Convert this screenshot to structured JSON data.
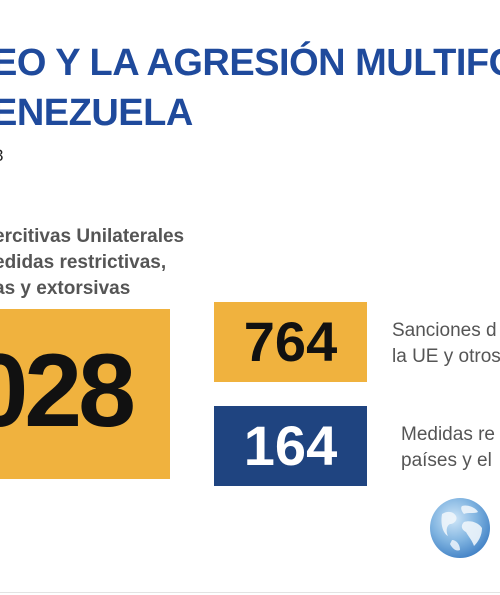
{
  "header": {
    "title_line_1": "EO Y LA AGRESIÓN MULTIFO",
    "title_line_2": "ENEZUELA",
    "date_fragment": "3"
  },
  "subtitle": {
    "line_1": "ercitivas Unilaterales",
    "line_2": "edidas restrictivas,",
    "line_3": "as y extorsivas"
  },
  "stats": {
    "total": {
      "value": "028"
    },
    "eu_sanctions": {
      "value": "764",
      "label_line_1": "Sanciones d",
      "label_line_2": "la UE y otros"
    },
    "other_measures": {
      "value": "164",
      "label_line_1": "Medidas re",
      "label_line_2": "países y el"
    }
  },
  "icons": {
    "globe": "globe-icon"
  },
  "colors": {
    "title_blue": "#1f4a9c",
    "accent_yellow": "#f0b23e",
    "navy": "#1f4480",
    "text_gray": "#555555"
  }
}
